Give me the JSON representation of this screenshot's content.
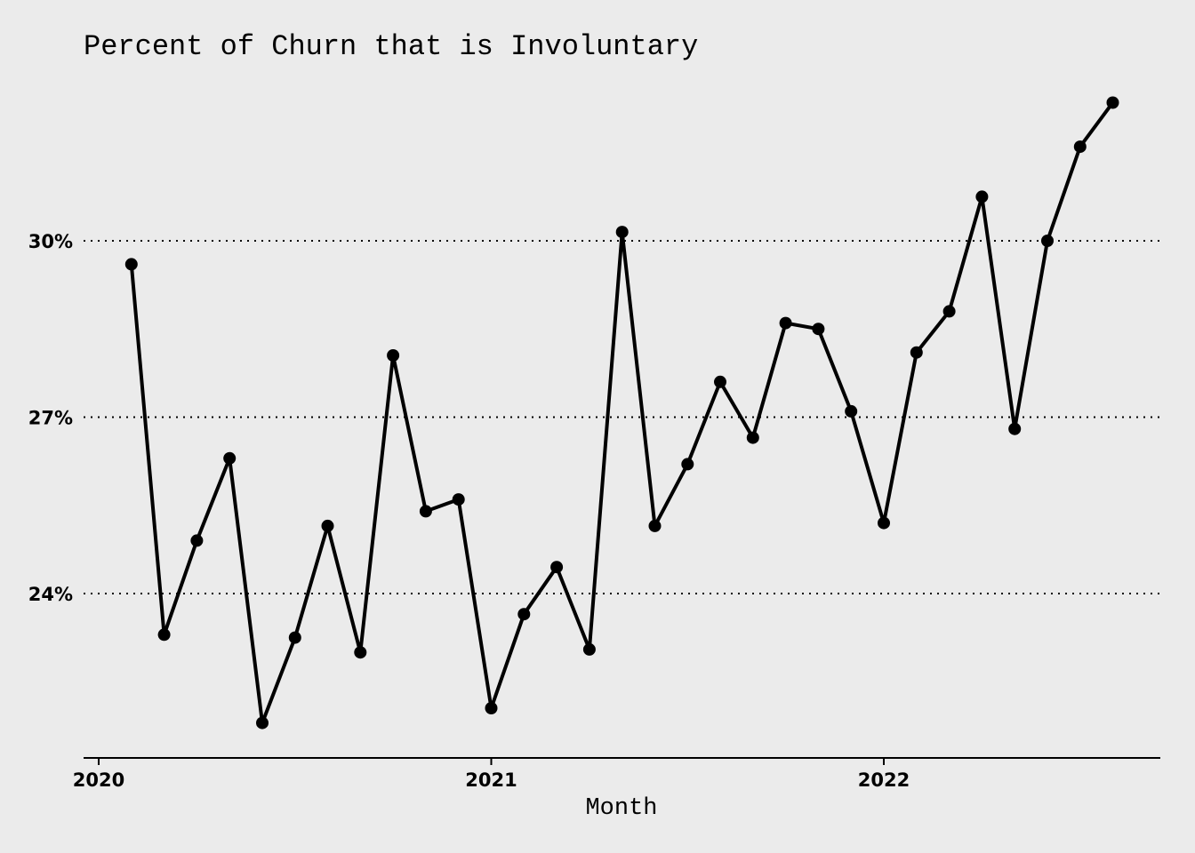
{
  "chart_data": {
    "type": "line",
    "title": "Percent of Churn that is Involuntary",
    "xlabel": "Month",
    "ylabel": "",
    "x_ticks": [
      "2020",
      "2021",
      "2022"
    ],
    "y_ticks": [
      "24%",
      "27%",
      "30%"
    ],
    "y_tick_values": [
      24,
      27,
      30
    ],
    "ylim": [
      21.35,
      33.1
    ],
    "grid": "horizontal dotted",
    "legend": "none",
    "series": [
      {
        "x": [
          "2020-02",
          "2020-03",
          "2020-04",
          "2020-05",
          "2020-06",
          "2020-07",
          "2020-08",
          "2020-09",
          "2020-10",
          "2020-11",
          "2020-12",
          "2021-01",
          "2021-02",
          "2021-03",
          "2021-04",
          "2021-05",
          "2021-06",
          "2021-07",
          "2021-08",
          "2021-09",
          "2021-10",
          "2021-11",
          "2021-12",
          "2022-01",
          "2022-02",
          "2022-03",
          "2022-04",
          "2022-05",
          "2022-06",
          "2022-07",
          "2022-08"
        ],
        "values": [
          29.6,
          23.3,
          24.9,
          26.3,
          21.8,
          23.25,
          25.15,
          23.0,
          28.05,
          25.4,
          25.6,
          22.05,
          23.65,
          24.45,
          23.05,
          30.15,
          25.15,
          26.2,
          27.6,
          26.65,
          28.6,
          28.5,
          27.1,
          25.2,
          28.1,
          28.8,
          30.75,
          26.8,
          30.0,
          31.6,
          32.35
        ]
      }
    ]
  }
}
